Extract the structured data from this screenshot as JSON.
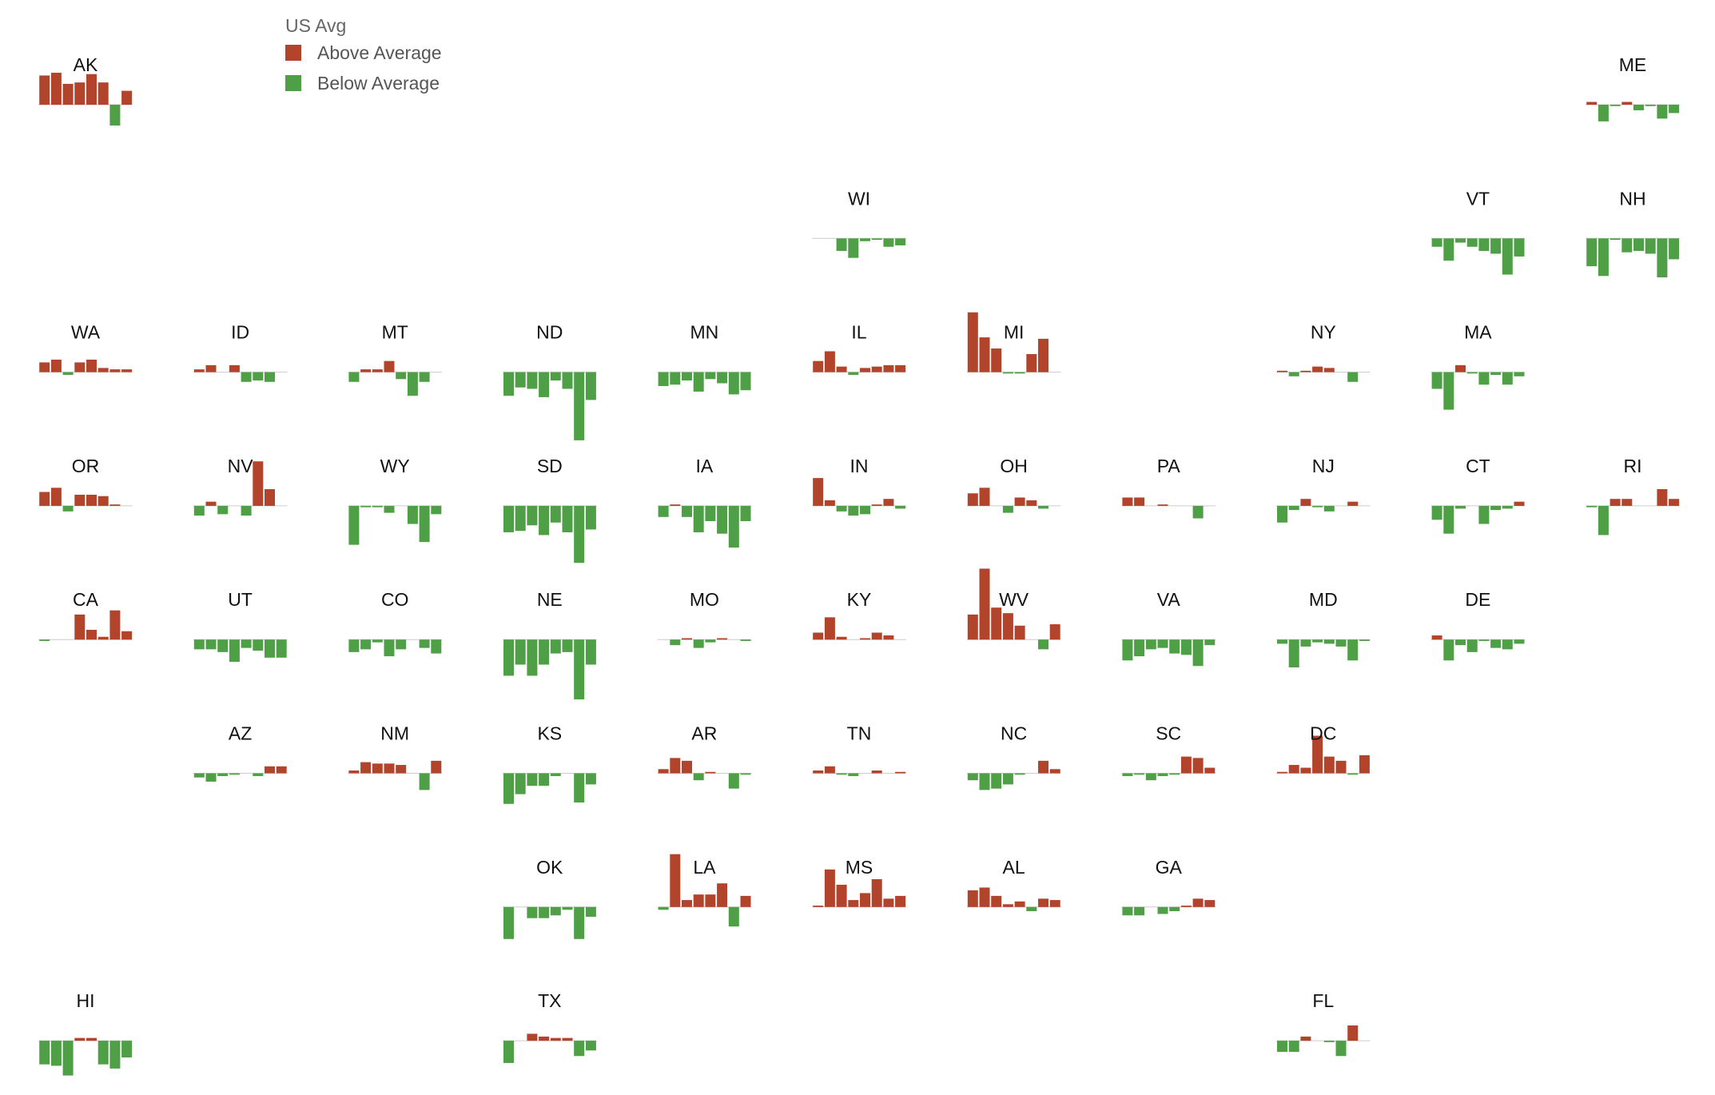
{
  "colors": {
    "above": "#b2442b",
    "below": "#4e9f45",
    "baseline": "#cccccc"
  },
  "legend": {
    "title": "US Avg",
    "items": [
      {
        "label": "Above Average",
        "color_key": "above"
      },
      {
        "label": "Below Average",
        "color_key": "below"
      }
    ]
  },
  "chart_data": {
    "type": "bar",
    "layout": "tile-grid-map",
    "description_series": "deviation from US average per state, 8 bars each",
    "states": [
      {
        "code": "AK",
        "row": 0,
        "col": 0,
        "values": [
          4.2,
          4.6,
          3.0,
          3.2,
          4.4,
          3.2,
          -3.0,
          2.0
        ]
      },
      {
        "code": "ME",
        "row": 0,
        "col": 10,
        "values": [
          0.4,
          -2.4,
          -0.2,
          0.4,
          -0.8,
          -0.2,
          -2.0,
          -1.2
        ]
      },
      {
        "code": "WI",
        "row": 1,
        "col": 5,
        "values": [
          0,
          0,
          -1.8,
          -2.8,
          -0.4,
          -0.2,
          -1.2,
          -1.0
        ]
      },
      {
        "code": "VT",
        "row": 1,
        "col": 9,
        "values": [
          -1.2,
          -3.2,
          -0.6,
          -1.2,
          -1.8,
          -2.2,
          -5.2,
          -2.6
        ]
      },
      {
        "code": "NH",
        "row": 1,
        "col": 10,
        "values": [
          -4.0,
          -5.4,
          -0.2,
          -2.0,
          -1.8,
          -2.2,
          -5.6,
          -3.0
        ]
      },
      {
        "code": "WA",
        "row": 2,
        "col": 0,
        "values": [
          1.4,
          1.8,
          -0.4,
          1.4,
          1.8,
          0.6,
          0.4,
          0.4
        ]
      },
      {
        "code": "ID",
        "row": 2,
        "col": 1,
        "values": [
          0.4,
          1.0,
          0,
          1.0,
          -1.4,
          -1.2,
          -1.4,
          0
        ]
      },
      {
        "code": "MT",
        "row": 2,
        "col": 2,
        "values": [
          -1.4,
          0.4,
          0.4,
          1.6,
          -1.0,
          -3.4,
          -1.4,
          0
        ]
      },
      {
        "code": "ND",
        "row": 2,
        "col": 3,
        "values": [
          -3.4,
          -2.2,
          -2.4,
          -3.6,
          -1.2,
          -2.4,
          -9.8,
          -4.0
        ]
      },
      {
        "code": "MN",
        "row": 2,
        "col": 4,
        "values": [
          -2.0,
          -1.8,
          -1.2,
          -2.8,
          -1.0,
          -1.6,
          -3.2,
          -2.6
        ]
      },
      {
        "code": "IL",
        "row": 2,
        "col": 5,
        "values": [
          1.6,
          3.0,
          0.8,
          -0.4,
          0.6,
          0.8,
          1.0,
          1.0
        ]
      },
      {
        "code": "MI",
        "row": 2,
        "col": 6,
        "values": [
          8.6,
          5.0,
          3.4,
          -0.2,
          -0.2,
          2.6,
          4.8,
          0
        ]
      },
      {
        "code": "NY",
        "row": 2,
        "col": 8,
        "values": [
          0.2,
          -0.6,
          0.2,
          0.8,
          0.6,
          0,
          -1.4,
          0
        ]
      },
      {
        "code": "MA",
        "row": 2,
        "col": 9,
        "values": [
          -2.4,
          -5.4,
          1.0,
          -0.2,
          -1.8,
          -0.4,
          -1.8,
          -0.6
        ]
      },
      {
        "code": "OR",
        "row": 3,
        "col": 0,
        "values": [
          2.0,
          2.6,
          -0.8,
          1.6,
          1.6,
          1.4,
          0.2,
          0
        ]
      },
      {
        "code": "NV",
        "row": 3,
        "col": 1,
        "values": [
          -1.4,
          0.6,
          -1.2,
          0,
          -1.4,
          6.4,
          2.4,
          0
        ]
      },
      {
        "code": "WY",
        "row": 3,
        "col": 2,
        "values": [
          -5.6,
          -0.2,
          -0.2,
          -1.0,
          0,
          -2.6,
          -5.2,
          -1.2
        ]
      },
      {
        "code": "SD",
        "row": 3,
        "col": 3,
        "values": [
          -3.8,
          -3.6,
          -2.8,
          -4.2,
          -2.4,
          -3.8,
          -8.2,
          -3.4
        ]
      },
      {
        "code": "IA",
        "row": 3,
        "col": 4,
        "values": [
          -1.6,
          0.2,
          -1.6,
          -3.8,
          -2.2,
          -4.0,
          -6.0,
          -2.2
        ]
      },
      {
        "code": "IN",
        "row": 3,
        "col": 5,
        "values": [
          4.0,
          0.8,
          -0.8,
          -1.4,
          -1.2,
          0.2,
          1.0,
          -0.4
        ]
      },
      {
        "code": "OH",
        "row": 3,
        "col": 6,
        "values": [
          1.8,
          2.6,
          0,
          -1.0,
          1.2,
          0.8,
          -0.4,
          0
        ]
      },
      {
        "code": "PA",
        "row": 3,
        "col": 7,
        "values": [
          1.2,
          1.2,
          0,
          0.2,
          0,
          0,
          -1.8,
          0
        ]
      },
      {
        "code": "NJ",
        "row": 3,
        "col": 8,
        "values": [
          -2.4,
          -0.6,
          1.0,
          -0.2,
          -0.8,
          0,
          0.6,
          0
        ]
      },
      {
        "code": "CT",
        "row": 3,
        "col": 9,
        "values": [
          -2.0,
          -4.0,
          -0.4,
          0,
          -2.6,
          -0.6,
          -0.4,
          0.6
        ]
      },
      {
        "code": "RI",
        "row": 3,
        "col": 10,
        "values": [
          -0.2,
          -4.2,
          1.0,
          1.0,
          0,
          0,
          2.4,
          1.0
        ]
      },
      {
        "code": "CA",
        "row": 4,
        "col": 0,
        "values": [
          -0.2,
          0,
          0,
          3.6,
          1.4,
          0.4,
          4.2,
          1.2
        ]
      },
      {
        "code": "UT",
        "row": 4,
        "col": 1,
        "values": [
          -1.4,
          -1.4,
          -1.8,
          -3.2,
          -1.2,
          -1.6,
          -2.6,
          -2.6
        ]
      },
      {
        "code": "CO",
        "row": 4,
        "col": 2,
        "values": [
          -1.8,
          -1.4,
          -0.4,
          -2.4,
          -1.4,
          0,
          -1.2,
          -2.0
        ]
      },
      {
        "code": "NE",
        "row": 4,
        "col": 3,
        "values": [
          -5.2,
          -3.6,
          -5.2,
          -3.6,
          -2.0,
          -1.8,
          -8.6,
          -3.6
        ]
      },
      {
        "code": "MO",
        "row": 4,
        "col": 4,
        "values": [
          0,
          -0.8,
          0.2,
          -1.2,
          -0.4,
          0.2,
          0,
          -0.2
        ]
      },
      {
        "code": "KY",
        "row": 4,
        "col": 5,
        "values": [
          1.0,
          3.2,
          0.4,
          0,
          0.2,
          1.0,
          0.6,
          0
        ]
      },
      {
        "code": "WV",
        "row": 4,
        "col": 6,
        "values": [
          3.6,
          10.2,
          4.6,
          3.8,
          2.0,
          0,
          -1.4,
          2.2
        ]
      },
      {
        "code": "VA",
        "row": 4,
        "col": 7,
        "values": [
          -3.0,
          -2.4,
          -1.4,
          -1.2,
          -2.0,
          -2.2,
          -3.8,
          -0.8
        ]
      },
      {
        "code": "MD",
        "row": 4,
        "col": 8,
        "values": [
          -0.6,
          -4.0,
          -1.0,
          -0.4,
          -0.6,
          -1.0,
          -3.0,
          -0.2
        ]
      },
      {
        "code": "DE",
        "row": 4,
        "col": 9,
        "values": [
          0.6,
          -3.0,
          -0.8,
          -1.8,
          -0.2,
          -1.2,
          -1.4,
          -0.6
        ]
      },
      {
        "code": "AZ",
        "row": 5,
        "col": 1,
        "values": [
          -0.6,
          -1.2,
          -0.4,
          -0.2,
          0,
          -0.4,
          1.0,
          1.0
        ]
      },
      {
        "code": "NM",
        "row": 5,
        "col": 2,
        "values": [
          0.4,
          1.6,
          1.4,
          1.4,
          1.2,
          0,
          -2.4,
          1.8
        ]
      },
      {
        "code": "KS",
        "row": 5,
        "col": 3,
        "values": [
          -4.4,
          -3.0,
          -1.8,
          -1.8,
          -0.4,
          0,
          -4.2,
          -1.6
        ]
      },
      {
        "code": "AR",
        "row": 5,
        "col": 4,
        "values": [
          0.6,
          2.2,
          1.8,
          -1.0,
          0.2,
          0,
          -2.2,
          -0.2
        ]
      },
      {
        "code": "TN",
        "row": 5,
        "col": 5,
        "values": [
          0.4,
          1.0,
          -0.2,
          -0.4,
          0,
          0.4,
          0,
          0.2
        ]
      },
      {
        "code": "NC",
        "row": 5,
        "col": 6,
        "values": [
          -1.0,
          -2.4,
          -2.2,
          -1.6,
          -0.2,
          0,
          1.8,
          0.6
        ]
      },
      {
        "code": "SC",
        "row": 5,
        "col": 7,
        "values": [
          -0.4,
          -0.2,
          -1.0,
          -0.4,
          -0.2,
          2.4,
          2.2,
          0.8
        ]
      },
      {
        "code": "DC",
        "row": 5,
        "col": 8,
        "values": [
          0.2,
          1.2,
          0.8,
          5.4,
          2.4,
          1.8,
          -0.2,
          2.6
        ]
      },
      {
        "code": "OK",
        "row": 6,
        "col": 3,
        "values": [
          -4.6,
          0,
          -1.6,
          -1.6,
          -1.2,
          -0.4,
          -4.6,
          -1.4
        ]
      },
      {
        "code": "LA",
        "row": 6,
        "col": 4,
        "values": [
          -0.4,
          7.6,
          1.0,
          1.8,
          1.8,
          3.4,
          -2.8,
          1.6
        ]
      },
      {
        "code": "MS",
        "row": 6,
        "col": 5,
        "values": [
          0.2,
          5.4,
          3.2,
          1.0,
          2.0,
          4.0,
          1.2,
          1.6
        ]
      },
      {
        "code": "AL",
        "row": 6,
        "col": 6,
        "values": [
          2.4,
          2.8,
          1.6,
          0.4,
          0.8,
          -0.6,
          1.2,
          1.0
        ]
      },
      {
        "code": "GA",
        "row": 6,
        "col": 7,
        "values": [
          -1.2,
          -1.2,
          0,
          -1.0,
          -0.6,
          0.2,
          1.2,
          1.0
        ]
      },
      {
        "code": "HI",
        "row": 7,
        "col": 0,
        "values": [
          -3.4,
          -3.6,
          -5.0,
          0.4,
          0.4,
          -3.4,
          -4.0,
          -2.4
        ]
      },
      {
        "code": "TX",
        "row": 7,
        "col": 3,
        "values": [
          -3.2,
          0,
          1.0,
          0.6,
          0.4,
          0.4,
          -2.2,
          -1.4
        ]
      },
      {
        "code": "FL",
        "row": 7,
        "col": 8,
        "values": [
          -1.6,
          -1.6,
          0.6,
          0,
          -0.2,
          -2.2,
          2.2,
          0
        ]
      }
    ]
  }
}
